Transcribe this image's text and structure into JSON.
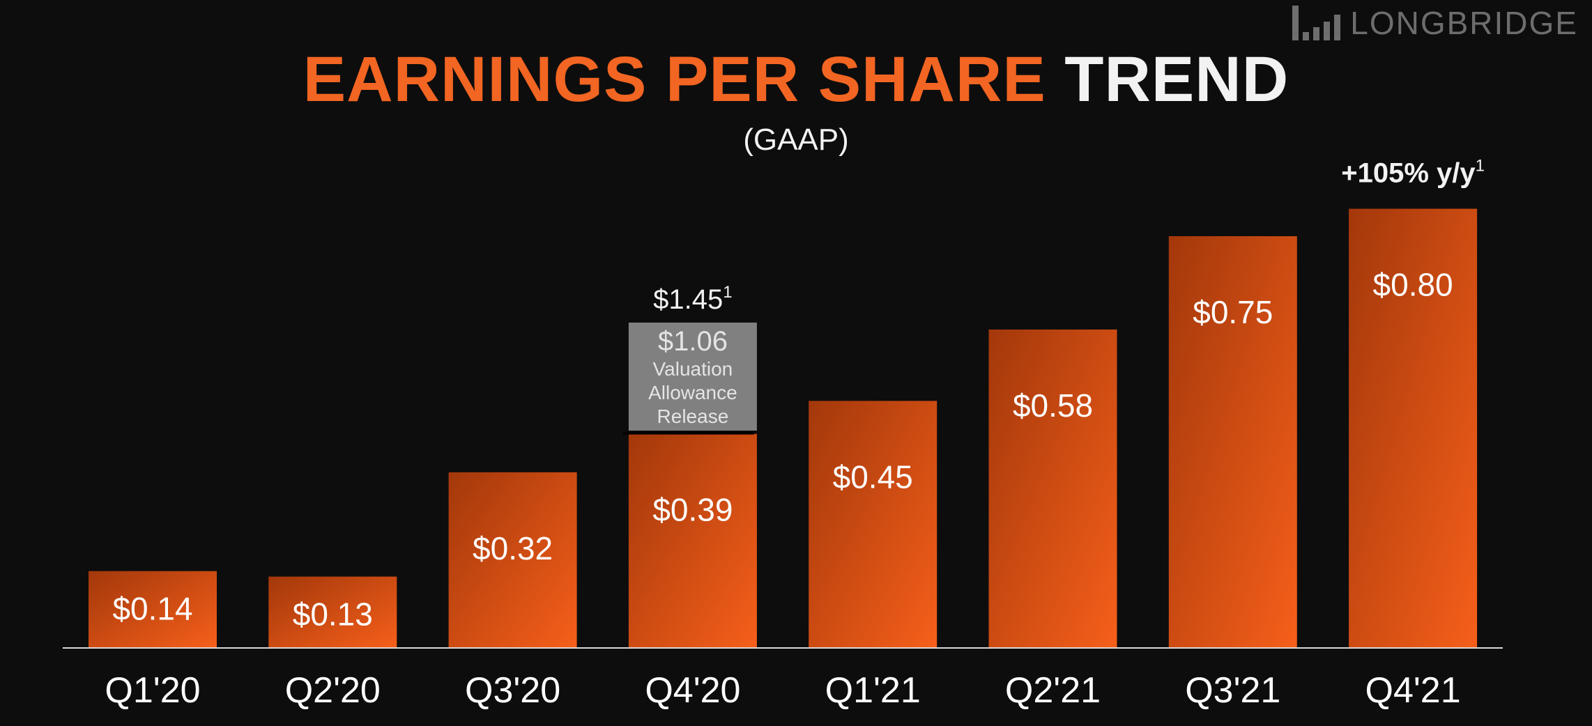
{
  "title": {
    "part1": "EARNINGS PER SHARE",
    "part2": "TREND"
  },
  "subtitle": "(GAAP)",
  "colors": {
    "bar": "#f26522",
    "bar_dark": "#a83a0c",
    "highlight_box": "#808080",
    "title_accent": "#f26522",
    "background": "#0d0d0d"
  },
  "chart_data": {
    "type": "bar",
    "title": "EARNINGS PER SHARE TREND",
    "subtitle": "(GAAP)",
    "categories": [
      "Q1'20",
      "Q2'20",
      "Q3'20",
      "Q4'20",
      "Q1'21",
      "Q2'21",
      "Q3'21",
      "Q4'21"
    ],
    "values": [
      0.14,
      0.13,
      0.32,
      0.39,
      0.45,
      0.58,
      0.75,
      0.8
    ],
    "value_labels": [
      "$0.14",
      "$0.13",
      "$0.32",
      "$0.39",
      "$0.45",
      "$0.58",
      "$0.75",
      "$0.80"
    ],
    "stacked_extra": {
      "category": "Q4'20",
      "value": 1.06,
      "value_label": "$1.06",
      "label_lines": [
        "Valuation",
        "Allowance",
        "Release"
      ],
      "total_label": "$1.45",
      "total_footnote": "1"
    },
    "annotation": {
      "category": "Q4'21",
      "text": "+105% y/y",
      "footnote": "1"
    },
    "xlabel": "",
    "ylabel": "",
    "ylim": [
      0,
      0.9
    ],
    "grid": false,
    "legend": "none"
  },
  "watermark": "LONGBRIDGE"
}
